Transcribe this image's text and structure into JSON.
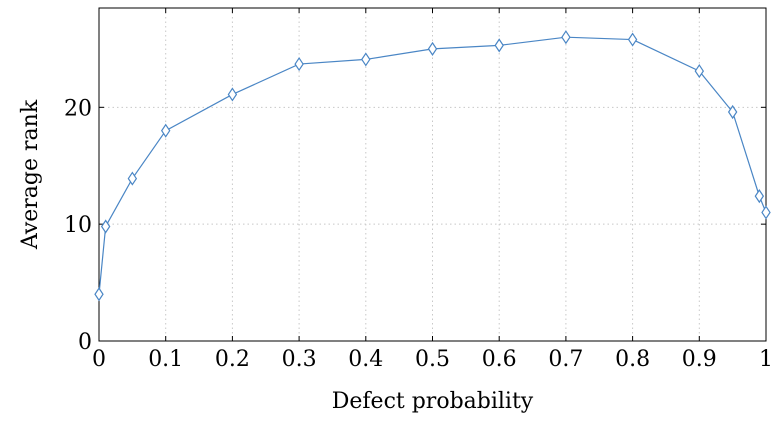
{
  "chart_data": {
    "type": "line",
    "xlabel": "Defect probability",
    "ylabel": "Average rank",
    "xlim": [
      0,
      1
    ],
    "ylim": [
      0,
      28.5
    ],
    "xticks": [
      0,
      0.1,
      0.2,
      0.3,
      0.4,
      0.5,
      0.6,
      0.7,
      0.8,
      0.9,
      1
    ],
    "xtick_labels": [
      "0",
      "0.1",
      "0.2",
      "0.3",
      "0.4",
      "0.5",
      "0.6",
      "0.7",
      "0.8",
      "0.9",
      "1"
    ],
    "yticks": [
      0,
      10,
      20
    ],
    "ytick_labels": [
      "0",
      "10",
      "20"
    ],
    "grid": true,
    "marker": "diamond",
    "color": "#4a86c5",
    "series": [
      {
        "x": [
          0,
          0.01,
          0.05,
          0.1,
          0.2,
          0.3,
          0.4,
          0.5,
          0.6,
          0.7,
          0.8,
          0.9,
          0.95,
          0.99,
          1
        ],
        "y": [
          4.0,
          9.8,
          13.9,
          18.0,
          21.1,
          23.7,
          24.1,
          25.0,
          25.3,
          26.0,
          25.8,
          23.1,
          19.6,
          12.4,
          11.0
        ]
      }
    ]
  }
}
